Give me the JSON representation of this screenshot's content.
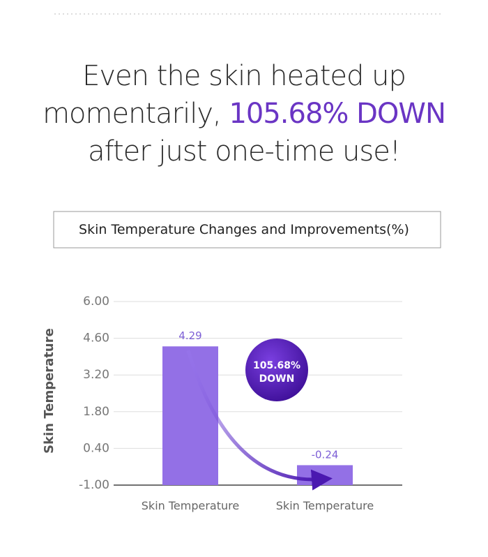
{
  "headline": {
    "line1": "Even the skin heated up",
    "line2": "momentarily,",
    "highlight": "105.68% DOWN",
    "line3": "after just one-time use!"
  },
  "chart_data": {
    "type": "bar",
    "title": "Skin Temperature Changes and Improvements(%)",
    "y_label": "Skin Temperature",
    "categories": [
      "Skin Temperature",
      "Skin Temperature"
    ],
    "values": [
      4.29,
      -0.24
    ],
    "color": "#9370e6",
    "ylim": [
      -1,
      6
    ],
    "yticks": [
      {
        "value": -1,
        "label": "-1.00"
      },
      {
        "value": 0.4,
        "label": "0.40"
      },
      {
        "value": 1.8,
        "label": "1.80"
      },
      {
        "value": 3.2,
        "label": "3.20"
      },
      {
        "value": 4.6,
        "label": "4.60"
      },
      {
        "value": 6,
        "label": "6.00"
      }
    ],
    "grid": true,
    "annotation": [
      "105.68%",
      "DOWN"
    ]
  }
}
